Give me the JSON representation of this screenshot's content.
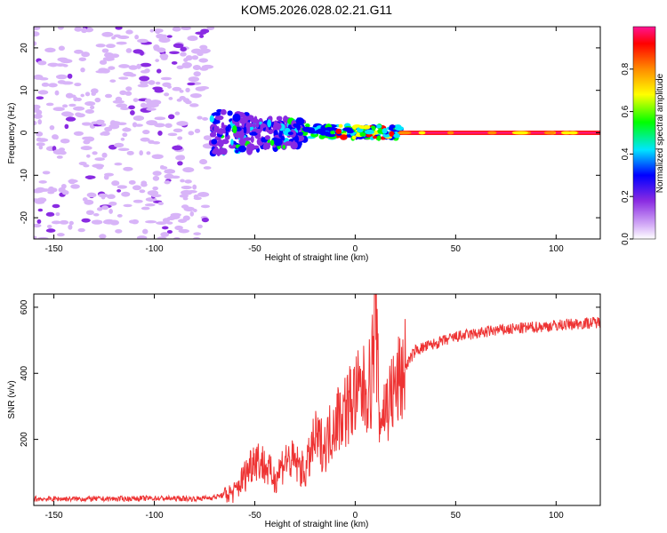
{
  "title": "KOM5.2026.028.02.21.G11",
  "chart_data": [
    {
      "type": "heatmap",
      "name": "spectrogram",
      "xlabel": "Height of straight line (km)",
      "ylabel": "Frequency (Hz)",
      "xlim": [
        -160,
        122
      ],
      "ylim": [
        -25,
        25
      ],
      "xticks": [
        -150,
        -100,
        -50,
        0,
        50,
        100
      ],
      "yticks": [
        -20,
        -10,
        0,
        10,
        20
      ],
      "colorbar": {
        "label": "Normalized spectral amplitude",
        "range": [
          0,
          1
        ],
        "ticks": [
          0.0,
          0.2,
          0.4,
          0.6,
          0.8
        ],
        "tick_labels": [
          "0.0",
          "0.2",
          "0.4",
          "0.6",
          "0.8"
        ],
        "colormap": [
          "#ffffff",
          "#d8b4f8",
          "#8a2be2",
          "#0000ff",
          "#00e5ff",
          "#00ff00",
          "#ffff00",
          "#ff8c00",
          "#ff0000",
          "#ff1493"
        ]
      },
      "features": [
        {
          "description": "noise speckle",
          "x_range": [
            -160,
            -72
          ],
          "freq_range": [
            -25,
            25
          ],
          "amplitude": 0.1
        },
        {
          "description": "broad signal onset",
          "x_range": [
            -72,
            -25
          ],
          "freq_range": [
            -6,
            5
          ],
          "amplitude": 0.3
        },
        {
          "description": "narrowing carrier",
          "x_range": [
            -25,
            22
          ],
          "freq_range": [
            -3,
            3
          ],
          "amplitude": 0.55
        },
        {
          "description": "steady carrier line",
          "x_range": [
            22,
            122
          ],
          "freq_range": [
            -0.5,
            0.5
          ],
          "amplitude": 0.95
        }
      ]
    },
    {
      "type": "line",
      "name": "snr",
      "xlabel": "Height of straight line (km)",
      "ylabel": "SNR (v/v)",
      "xlim": [
        -160,
        122
      ],
      "ylim": [
        0,
        640
      ],
      "xticks": [
        -150,
        -100,
        -50,
        0,
        50,
        100
      ],
      "yticks": [
        200,
        400,
        600
      ],
      "color": "#ee3333",
      "series": [
        {
          "name": "SNR",
          "x": [
            -160,
            -140,
            -120,
            -100,
            -80,
            -70,
            -60,
            -55,
            -50,
            -45,
            -40,
            -35,
            -30,
            -25,
            -20,
            -15,
            -10,
            -5,
            0,
            5,
            8,
            10,
            12,
            15,
            20,
            25,
            30,
            40,
            50,
            60,
            70,
            80,
            90,
            100,
            110,
            122
          ],
          "y": [
            20,
            20,
            20,
            22,
            20,
            25,
            40,
            90,
            150,
            120,
            80,
            140,
            130,
            100,
            200,
            180,
            260,
            290,
            330,
            350,
            370,
            620,
            260,
            300,
            350,
            420,
            470,
            490,
            510,
            520,
            530,
            535,
            540,
            545,
            550,
            555
          ]
        }
      ]
    }
  ]
}
